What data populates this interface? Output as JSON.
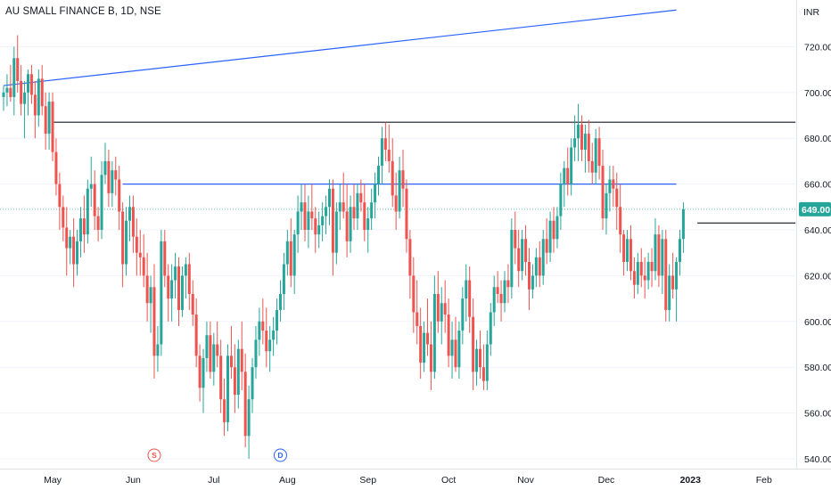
{
  "header": {
    "symbol_title": "AU SMALL FINANCE B, 1D, NSE",
    "currency": "INR"
  },
  "colors": {
    "up": "#26a69a",
    "down": "#ef5350",
    "trendline": "#2962ff",
    "hline": "#131722",
    "last_price_bg": "#26a69a"
  },
  "last_price": {
    "label": "649.00",
    "value": 649
  },
  "markers": [
    {
      "text": "S",
      "color": "#ef5350",
      "index": 43
    },
    {
      "text": "D",
      "color": "#2962ff",
      "index": 79
    }
  ],
  "chart_data": {
    "type": "candlestick",
    "title": "AU SMALL FINANCE B, 1D, NSE",
    "ylabel": "INR",
    "ylim": [
      535,
      735
    ],
    "yticks": [
      540,
      560,
      580,
      600,
      620,
      640,
      660,
      680,
      700,
      720
    ],
    "x_tick_labels": [
      {
        "label": "May",
        "index": 14
      },
      {
        "label": "Jun",
        "index": 37
      },
      {
        "label": "Jul",
        "index": 60
      },
      {
        "label": "Aug",
        "index": 81
      },
      {
        "label": "Sep",
        "index": 104
      },
      {
        "label": "Oct",
        "index": 127
      },
      {
        "label": "Nov",
        "index": 149
      },
      {
        "label": "Dec",
        "index": 172
      },
      {
        "label": "2023",
        "index": 196
      },
      {
        "label": "Feb",
        "index": 217
      }
    ],
    "drawings": {
      "trendline": {
        "from": {
          "index": 0,
          "value": 703
        },
        "to": {
          "index": 192,
          "value": 736
        }
      },
      "horizontal_lines": [
        {
          "value": 687,
          "from_index": 14,
          "to_index": 226,
          "color": "#131722"
        },
        {
          "value": 660,
          "from_index": 34,
          "to_index": 192,
          "color": "#2962ff"
        },
        {
          "value": 643,
          "from_index": 198,
          "to_index": 226,
          "color": "#131722"
        }
      ]
    },
    "candles": [
      [
        698,
        703,
        692,
        700
      ],
      [
        700,
        708,
        694,
        702
      ],
      [
        702,
        712,
        696,
        698
      ],
      [
        698,
        720,
        690,
        715
      ],
      [
        715,
        725,
        700,
        705
      ],
      [
        705,
        712,
        690,
        695
      ],
      [
        695,
        705,
        680,
        700
      ],
      [
        700,
        710,
        690,
        708
      ],
      [
        708,
        712,
        695,
        699
      ],
      [
        699,
        705,
        680,
        690
      ],
      [
        690,
        710,
        685,
        706
      ],
      [
        706,
        712,
        690,
        694
      ],
      [
        694,
        700,
        675,
        682
      ],
      [
        682,
        700,
        675,
        696
      ],
      [
        696,
        700,
        670,
        674
      ],
      [
        674,
        680,
        655,
        660
      ],
      [
        660,
        665,
        640,
        650
      ],
      [
        650,
        655,
        635,
        641
      ],
      [
        641,
        650,
        620,
        632
      ],
      [
        632,
        640,
        625,
        637
      ],
      [
        637,
        645,
        615,
        625
      ],
      [
        625,
        640,
        620,
        635
      ],
      [
        635,
        650,
        628,
        645
      ],
      [
        645,
        655,
        630,
        638
      ],
      [
        638,
        662,
        634,
        658
      ],
      [
        658,
        672,
        650,
        660
      ],
      [
        660,
        666,
        640,
        646
      ],
      [
        646,
        650,
        635,
        640
      ],
      [
        640,
        670,
        636,
        664
      ],
      [
        664,
        678,
        660,
        670
      ],
      [
        670,
        675,
        650,
        656
      ],
      [
        656,
        670,
        650,
        666
      ],
      [
        666,
        672,
        655,
        662
      ],
      [
        662,
        668,
        640,
        648
      ],
      [
        648,
        652,
        615,
        625
      ],
      [
        625,
        650,
        620,
        644
      ],
      [
        644,
        655,
        635,
        650
      ],
      [
        650,
        655,
        630,
        637
      ],
      [
        637,
        645,
        620,
        630
      ],
      [
        630,
        640,
        620,
        628
      ],
      [
        628,
        638,
        615,
        620
      ],
      [
        620,
        630,
        600,
        608
      ],
      [
        608,
        620,
        595,
        615
      ],
      [
        615,
        625,
        575,
        585
      ],
      [
        585,
        598,
        578,
        590
      ],
      [
        590,
        640,
        585,
        635
      ],
      [
        635,
        640,
        615,
        620
      ],
      [
        620,
        625,
        600,
        610
      ],
      [
        610,
        625,
        600,
        618
      ],
      [
        618,
        630,
        610,
        624
      ],
      [
        624,
        628,
        598,
        605
      ],
      [
        605,
        624,
        602,
        620
      ],
      [
        620,
        628,
        610,
        625
      ],
      [
        625,
        630,
        605,
        612
      ],
      [
        612,
        618,
        598,
        603
      ],
      [
        603,
        610,
        580,
        585
      ],
      [
        585,
        590,
        565,
        571
      ],
      [
        571,
        588,
        560,
        584
      ],
      [
        584,
        600,
        578,
        594
      ],
      [
        594,
        600,
        575,
        578
      ],
      [
        578,
        595,
        572,
        590
      ],
      [
        590,
        600,
        580,
        585
      ],
      [
        585,
        592,
        560,
        566
      ],
      [
        566,
        575,
        550,
        556
      ],
      [
        556,
        590,
        552,
        585
      ],
      [
        585,
        598,
        575,
        580
      ],
      [
        580,
        590,
        560,
        568
      ],
      [
        568,
        592,
        562,
        588
      ],
      [
        588,
        600,
        570,
        578
      ],
      [
        578,
        586,
        545,
        550
      ],
      [
        550,
        572,
        540,
        566
      ],
      [
        566,
        584,
        560,
        580
      ],
      [
        580,
        598,
        575,
        592
      ],
      [
        592,
        606,
        585,
        600
      ],
      [
        600,
        610,
        590,
        596
      ],
      [
        596,
        606,
        580,
        587
      ],
      [
        587,
        598,
        578,
        592
      ],
      [
        592,
        602,
        585,
        596
      ],
      [
        596,
        610,
        590,
        605
      ],
      [
        605,
        618,
        600,
        612
      ],
      [
        612,
        630,
        605,
        625
      ],
      [
        625,
        640,
        620,
        635
      ],
      [
        635,
        645,
        615,
        620
      ],
      [
        620,
        640,
        612,
        638
      ],
      [
        638,
        655,
        630,
        648
      ],
      [
        648,
        660,
        640,
        652
      ],
      [
        652,
        660,
        635,
        640
      ],
      [
        640,
        655,
        632,
        648
      ],
      [
        648,
        660,
        640,
        645
      ],
      [
        645,
        650,
        630,
        638
      ],
      [
        638,
        648,
        632,
        642
      ],
      [
        642,
        652,
        635,
        646
      ],
      [
        646,
        655,
        638,
        650
      ],
      [
        650,
        662,
        642,
        658
      ],
      [
        658,
        662,
        620,
        630
      ],
      [
        630,
        652,
        625,
        648
      ],
      [
        648,
        660,
        640,
        652
      ],
      [
        652,
        665,
        645,
        648
      ],
      [
        648,
        660,
        628,
        635
      ],
      [
        635,
        655,
        630,
        650
      ],
      [
        650,
        660,
        640,
        645
      ],
      [
        645,
        660,
        640,
        656
      ],
      [
        656,
        662,
        648,
        652
      ],
      [
        652,
        660,
        635,
        640
      ],
      [
        640,
        650,
        630,
        645
      ],
      [
        645,
        658,
        640,
        652
      ],
      [
        652,
        665,
        645,
        660
      ],
      [
        660,
        672,
        655,
        668
      ],
      [
        668,
        685,
        660,
        680
      ],
      [
        680,
        687,
        670,
        675
      ],
      [
        675,
        686,
        665,
        670
      ],
      [
        670,
        680,
        650,
        655
      ],
      [
        655,
        665,
        640,
        648
      ],
      [
        648,
        672,
        645,
        666
      ],
      [
        666,
        675,
        650,
        658
      ],
      [
        658,
        662,
        630,
        636
      ],
      [
        636,
        640,
        610,
        620
      ],
      [
        620,
        628,
        595,
        604
      ],
      [
        604,
        618,
        590,
        598
      ],
      [
        598,
        606,
        575,
        582
      ],
      [
        582,
        600,
        578,
        595
      ],
      [
        595,
        610,
        585,
        590
      ],
      [
        590,
        600,
        570,
        578
      ],
      [
        578,
        620,
        575,
        612
      ],
      [
        612,
        622,
        595,
        600
      ],
      [
        600,
        615,
        590,
        608
      ],
      [
        608,
        618,
        595,
        603
      ],
      [
        603,
        610,
        580,
        585
      ],
      [
        585,
        600,
        575,
        592
      ],
      [
        592,
        602,
        578,
        580
      ],
      [
        580,
        600,
        575,
        596
      ],
      [
        596,
        615,
        590,
        610
      ],
      [
        610,
        625,
        600,
        618
      ],
      [
        618,
        624,
        595,
        602
      ],
      [
        602,
        610,
        570,
        578
      ],
      [
        578,
        592,
        572,
        588
      ],
      [
        588,
        596,
        575,
        580
      ],
      [
        580,
        590,
        570,
        574
      ],
      [
        574,
        596,
        570,
        590
      ],
      [
        590,
        608,
        585,
        604
      ],
      [
        604,
        620,
        598,
        615
      ],
      [
        615,
        622,
        608,
        612
      ],
      [
        612,
        618,
        600,
        608
      ],
      [
        608,
        622,
        604,
        618
      ],
      [
        618,
        625,
        608,
        615
      ],
      [
        615,
        645,
        610,
        640
      ],
      [
        640,
        648,
        625,
        632
      ],
      [
        632,
        640,
        615,
        622
      ],
      [
        622,
        640,
        618,
        636
      ],
      [
        636,
        642,
        620,
        626
      ],
      [
        626,
        632,
        605,
        614
      ],
      [
        614,
        625,
        610,
        620
      ],
      [
        620,
        632,
        615,
        628
      ],
      [
        628,
        635,
        615,
        620
      ],
      [
        620,
        640,
        616,
        636
      ],
      [
        636,
        645,
        625,
        630
      ],
      [
        630,
        648,
        626,
        644
      ],
      [
        644,
        650,
        630,
        636
      ],
      [
        636,
        650,
        632,
        646
      ],
      [
        646,
        665,
        640,
        660
      ],
      [
        660,
        670,
        650,
        667
      ],
      [
        667,
        676,
        655,
        660
      ],
      [
        660,
        680,
        655,
        676
      ],
      [
        676,
        690,
        670,
        680
      ],
      [
        680,
        695,
        670,
        686
      ],
      [
        686,
        690,
        670,
        675
      ],
      [
        675,
        686,
        665,
        682
      ],
      [
        682,
        688,
        665,
        670
      ],
      [
        670,
        678,
        660,
        665
      ],
      [
        665,
        684,
        660,
        680
      ],
      [
        680,
        685,
        662,
        668
      ],
      [
        668,
        675,
        640,
        645
      ],
      [
        645,
        660,
        638,
        656
      ],
      [
        656,
        668,
        648,
        662
      ],
      [
        662,
        668,
        650,
        658
      ],
      [
        658,
        665,
        640,
        650
      ],
      [
        650,
        660,
        630,
        638
      ],
      [
        638,
        640,
        620,
        626
      ],
      [
        626,
        640,
        622,
        636
      ],
      [
        636,
        642,
        618,
        622
      ],
      [
        622,
        628,
        610,
        616
      ],
      [
        616,
        630,
        612,
        626
      ],
      [
        626,
        632,
        615,
        620
      ],
      [
        620,
        628,
        610,
        618
      ],
      [
        618,
        630,
        614,
        626
      ],
      [
        626,
        632,
        615,
        622
      ],
      [
        622,
        645,
        618,
        638
      ],
      [
        638,
        642,
        615,
        620
      ],
      [
        620,
        640,
        612,
        636
      ],
      [
        636,
        640,
        600,
        605
      ],
      [
        605,
        625,
        600,
        620
      ],
      [
        620,
        630,
        610,
        614
      ],
      [
        614,
        628,
        600,
        626
      ],
      [
        626,
        640,
        620,
        636
      ],
      [
        636,
        652,
        630,
        649
      ]
    ]
  }
}
